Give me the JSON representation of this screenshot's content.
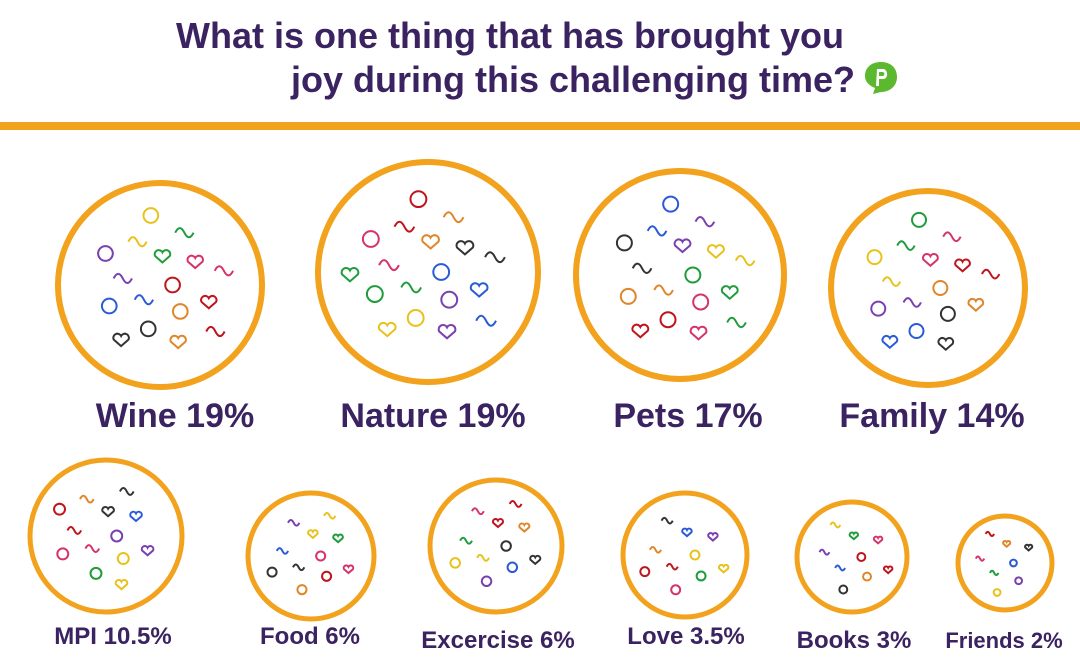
{
  "header": {
    "title_line1": "What is one thing that has brought you",
    "title_line2": "joy during this challenging time?",
    "logo_icon": "poll-everywhere-logo-icon",
    "logo_color": "#5cb82e"
  },
  "colors": {
    "title": "#3a2360",
    "accent_rule": "#f2a21c",
    "bubble_border": "#f2a21c",
    "label": "#3a2360"
  },
  "chart_data": {
    "type": "bubble",
    "title": "What is one thing that has brought you joy during this challenging time?",
    "categories": [
      "Wine",
      "Nature",
      "Pets",
      "Family",
      "MPI",
      "Food",
      "Excercise",
      "Love",
      "Books",
      "Friends"
    ],
    "values": [
      19,
      19,
      17,
      14,
      10.5,
      6,
      6,
      3.5,
      3,
      2
    ],
    "labels": [
      "Wine 19%",
      "Nature 19%",
      "Pets 17%",
      "Family 14%",
      "MPI 10.5%",
      "Food 6%",
      "Excercise 6%",
      "Love 3.5%",
      "Books 3%",
      "Friends 2%"
    ],
    "unit": "%"
  }
}
